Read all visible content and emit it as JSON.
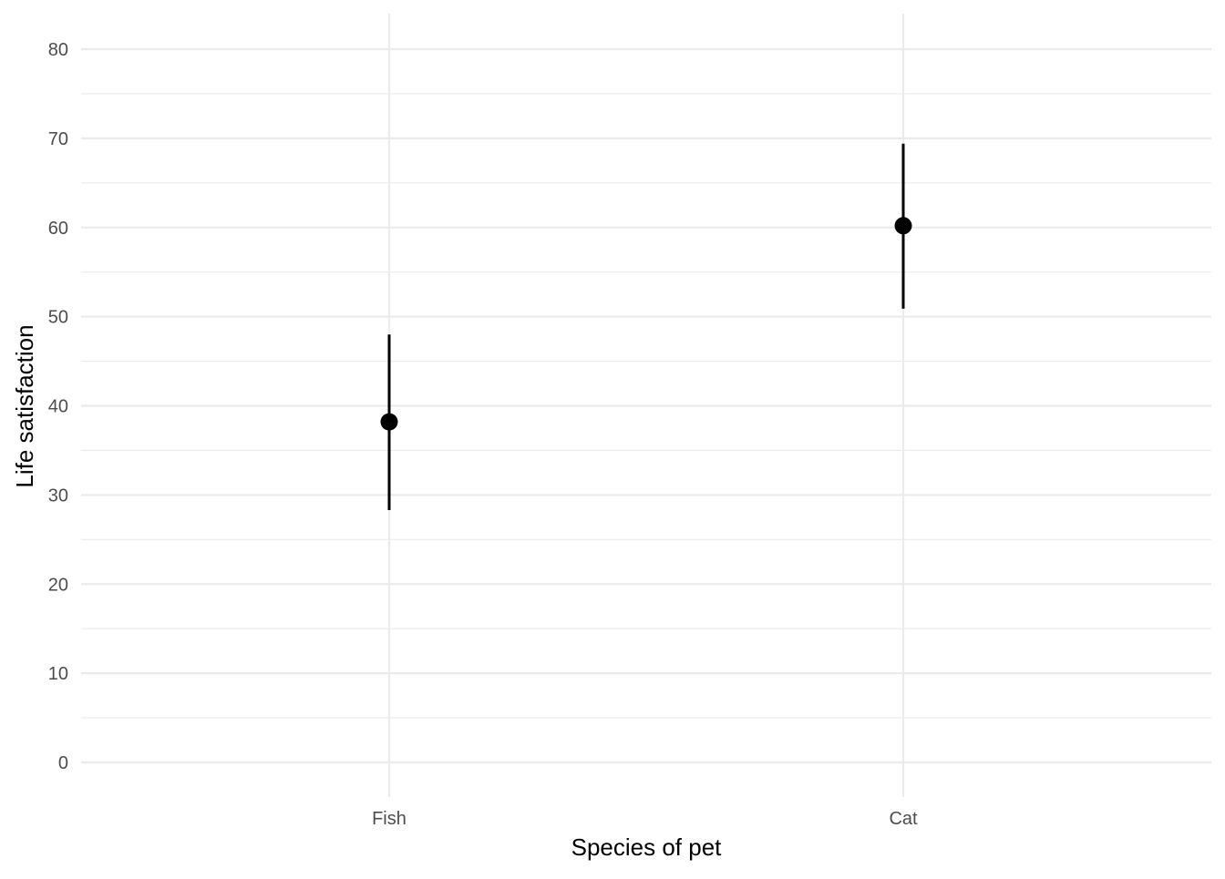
{
  "chart_data": {
    "type": "pointrange",
    "title": "",
    "xlabel": "Species of pet",
    "ylabel": "Life satisfaction",
    "categories": [
      "Fish",
      "Cat"
    ],
    "series": [
      {
        "points": [
          {
            "category": "Fish",
            "mean": 38.2,
            "lower": 28.3,
            "upper": 48.0
          },
          {
            "category": "Cat",
            "mean": 60.2,
            "lower": 50.9,
            "upper": 69.4
          }
        ]
      }
    ],
    "ylim": [
      -3.8,
      84
    ],
    "y_ticks": [
      "0",
      "10",
      "20",
      "30",
      "40",
      "50",
      "60",
      "70",
      "80"
    ],
    "y_tick_values": [
      0,
      10,
      20,
      30,
      40,
      50,
      60,
      70,
      80
    ],
    "y_minor_tick_values": [
      5,
      15,
      25,
      35,
      45,
      55,
      65,
      75
    ],
    "grid": true,
    "legend": "none",
    "colors": {
      "point": "#000000",
      "grid": "#ebebeb",
      "tick_text": "#4d4d4d",
      "axis_title": "#000000",
      "background": "#ffffff"
    }
  }
}
